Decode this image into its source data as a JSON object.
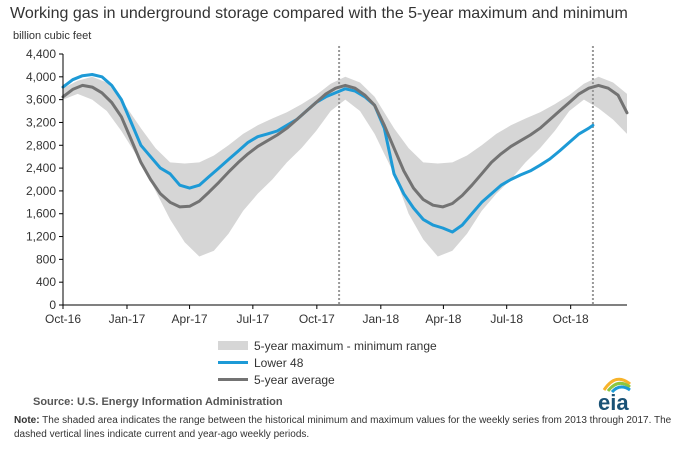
{
  "title": "Working gas in underground  storage compared with the 5-year maximum and minimum",
  "source": "Source:  U.S. Energy Information Administration",
  "note_label": "Note:",
  "note_text": "The shaded area indicates the range between the historical minimum and maximum values for the weekly series from 2013 through 2017. The dashed vertical lines indicate current and year-ago weekly periods.",
  "logo_text": "eia",
  "colors": {
    "band": "#d6d6d6",
    "lower48": "#1d9ad6",
    "average": "#737373",
    "vline": "#999999"
  },
  "chart_data": {
    "type": "line",
    "ylabel": "billion cubic feet",
    "ylim": [
      0,
      4400
    ],
    "yticks": [
      0,
      400,
      800,
      1200,
      1600,
      2000,
      2400,
      2800,
      3200,
      3600,
      4000,
      4400
    ],
    "yticks_labels": [
      "0",
      "400",
      "800",
      "1,200",
      "1,600",
      "2,000",
      "2,400",
      "2,800",
      "3,200",
      "3,600",
      "4,000",
      "4,400"
    ],
    "xlim": [
      "2016-10-01",
      "2018-12-21"
    ],
    "xticks": [
      "2016-10-01",
      "2017-01-01",
      "2017-04-01",
      "2017-07-01",
      "2017-10-01",
      "2018-01-01",
      "2018-04-01",
      "2018-07-01",
      "2018-10-01"
    ],
    "xticks_labels": [
      "Oct-16",
      "Jan-17",
      "Apr-17",
      "Jul-17",
      "Oct-17",
      "Jan-18",
      "Apr-18",
      "Jul-18",
      "Oct-18"
    ],
    "vlines": [
      "2017-11-02",
      "2018-11-02"
    ],
    "grid": false,
    "legend_position": "bottom-center",
    "series": [
      {
        "name": "5-year maximum - minimum range",
        "kind": "band",
        "x": [
          "2016-10-01",
          "2016-10-22",
          "2016-11-12",
          "2016-12-03",
          "2016-12-24",
          "2017-01-21",
          "2017-02-11",
          "2017-03-04",
          "2017-03-25",
          "2017-04-15",
          "2017-05-06",
          "2017-05-27",
          "2017-06-17",
          "2017-07-08",
          "2017-07-29",
          "2017-08-19",
          "2017-09-09",
          "2017-09-30",
          "2017-10-21",
          "2017-11-11",
          "2017-12-02",
          "2017-12-23",
          "2018-01-20",
          "2018-02-10",
          "2018-03-03",
          "2018-03-24",
          "2018-04-14",
          "2018-05-05",
          "2018-05-26",
          "2018-06-16",
          "2018-07-07",
          "2018-07-28",
          "2018-08-18",
          "2018-09-08",
          "2018-09-29",
          "2018-10-20",
          "2018-11-10",
          "2018-12-01",
          "2018-12-21"
        ],
        "upper": [
          3800,
          3930,
          4000,
          3900,
          3600,
          3100,
          2750,
          2500,
          2480,
          2500,
          2620,
          2800,
          3000,
          3150,
          3270,
          3380,
          3520,
          3680,
          3880,
          4000,
          3900,
          3650,
          3100,
          2750,
          2500,
          2480,
          2500,
          2620,
          2800,
          3000,
          3150,
          3270,
          3380,
          3520,
          3680,
          3880,
          4000,
          3900,
          3700
        ],
        "lower": [
          3600,
          3700,
          3600,
          3400,
          3050,
          2500,
          2000,
          1500,
          1100,
          850,
          950,
          1250,
          1650,
          1950,
          2200,
          2500,
          2750,
          3050,
          3400,
          3600,
          3400,
          3000,
          2300,
          1600,
          1150,
          850,
          950,
          1250,
          1650,
          1950,
          2200,
          2500,
          2750,
          3050,
          3400,
          3600,
          3450,
          3250,
          3000
        ]
      },
      {
        "name": "Lower 48",
        "kind": "line",
        "x": [
          "2016-10-01",
          "2016-10-15",
          "2016-10-29",
          "2016-11-12",
          "2016-11-26",
          "2016-12-10",
          "2016-12-24",
          "2017-01-07",
          "2017-01-21",
          "2017-02-04",
          "2017-02-18",
          "2017-03-04",
          "2017-03-18",
          "2017-04-01",
          "2017-04-15",
          "2017-04-29",
          "2017-05-13",
          "2017-05-27",
          "2017-06-10",
          "2017-06-24",
          "2017-07-08",
          "2017-07-22",
          "2017-08-05",
          "2017-08-19",
          "2017-09-02",
          "2017-09-16",
          "2017-09-30",
          "2017-10-14",
          "2017-10-28",
          "2017-11-11",
          "2017-11-25",
          "2017-12-09",
          "2017-12-23",
          "2018-01-06",
          "2018-01-20",
          "2018-02-03",
          "2018-02-17",
          "2018-03-03",
          "2018-03-17",
          "2018-03-31",
          "2018-04-14",
          "2018-04-28",
          "2018-05-12",
          "2018-05-26",
          "2018-06-09",
          "2018-06-23",
          "2018-07-07",
          "2018-07-21",
          "2018-08-04",
          "2018-08-18",
          "2018-09-01",
          "2018-09-15",
          "2018-09-29",
          "2018-10-13",
          "2018-10-27",
          "2018-11-02"
        ],
        "values": [
          3820,
          3950,
          4020,
          4040,
          4000,
          3850,
          3600,
          3200,
          2800,
          2600,
          2400,
          2300,
          2100,
          2050,
          2100,
          2250,
          2400,
          2550,
          2700,
          2850,
          2950,
          3000,
          3050,
          3150,
          3250,
          3400,
          3550,
          3650,
          3720,
          3790,
          3750,
          3650,
          3500,
          3100,
          2300,
          1950,
          1700,
          1500,
          1400,
          1350,
          1280,
          1400,
          1600,
          1800,
          1950,
          2100,
          2200,
          2280,
          2350,
          2450,
          2560,
          2700,
          2850,
          3000,
          3100,
          3150
        ]
      },
      {
        "name": "5-year average",
        "kind": "line",
        "x": [
          "2016-10-01",
          "2016-10-15",
          "2016-10-29",
          "2016-11-12",
          "2016-11-26",
          "2016-12-10",
          "2016-12-24",
          "2017-01-07",
          "2017-01-21",
          "2017-02-04",
          "2017-02-18",
          "2017-03-04",
          "2017-03-18",
          "2017-04-01",
          "2017-04-15",
          "2017-04-29",
          "2017-05-13",
          "2017-05-27",
          "2017-06-10",
          "2017-06-24",
          "2017-07-08",
          "2017-07-22",
          "2017-08-05",
          "2017-08-19",
          "2017-09-02",
          "2017-09-16",
          "2017-09-30",
          "2017-10-14",
          "2017-10-28",
          "2017-11-11",
          "2017-11-25",
          "2017-12-09",
          "2017-12-23",
          "2018-01-06",
          "2018-01-20",
          "2018-02-03",
          "2018-02-17",
          "2018-03-03",
          "2018-03-17",
          "2018-03-31",
          "2018-04-14",
          "2018-04-28",
          "2018-05-12",
          "2018-05-26",
          "2018-06-09",
          "2018-06-23",
          "2018-07-07",
          "2018-07-21",
          "2018-08-04",
          "2018-08-18",
          "2018-09-01",
          "2018-09-15",
          "2018-09-29",
          "2018-10-13",
          "2018-10-27",
          "2018-11-10",
          "2018-11-24",
          "2018-12-08",
          "2018-12-21"
        ],
        "values": [
          3650,
          3780,
          3850,
          3820,
          3720,
          3550,
          3300,
          2900,
          2500,
          2200,
          1950,
          1800,
          1720,
          1730,
          1820,
          1980,
          2150,
          2330,
          2500,
          2650,
          2780,
          2880,
          2980,
          3100,
          3250,
          3400,
          3550,
          3700,
          3800,
          3850,
          3800,
          3680,
          3500,
          3150,
          2750,
          2350,
          2050,
          1850,
          1750,
          1720,
          1780,
          1920,
          2100,
          2300,
          2500,
          2650,
          2780,
          2880,
          2980,
          3100,
          3250,
          3400,
          3550,
          3700,
          3800,
          3850,
          3800,
          3680,
          3370
        ]
      }
    ]
  }
}
